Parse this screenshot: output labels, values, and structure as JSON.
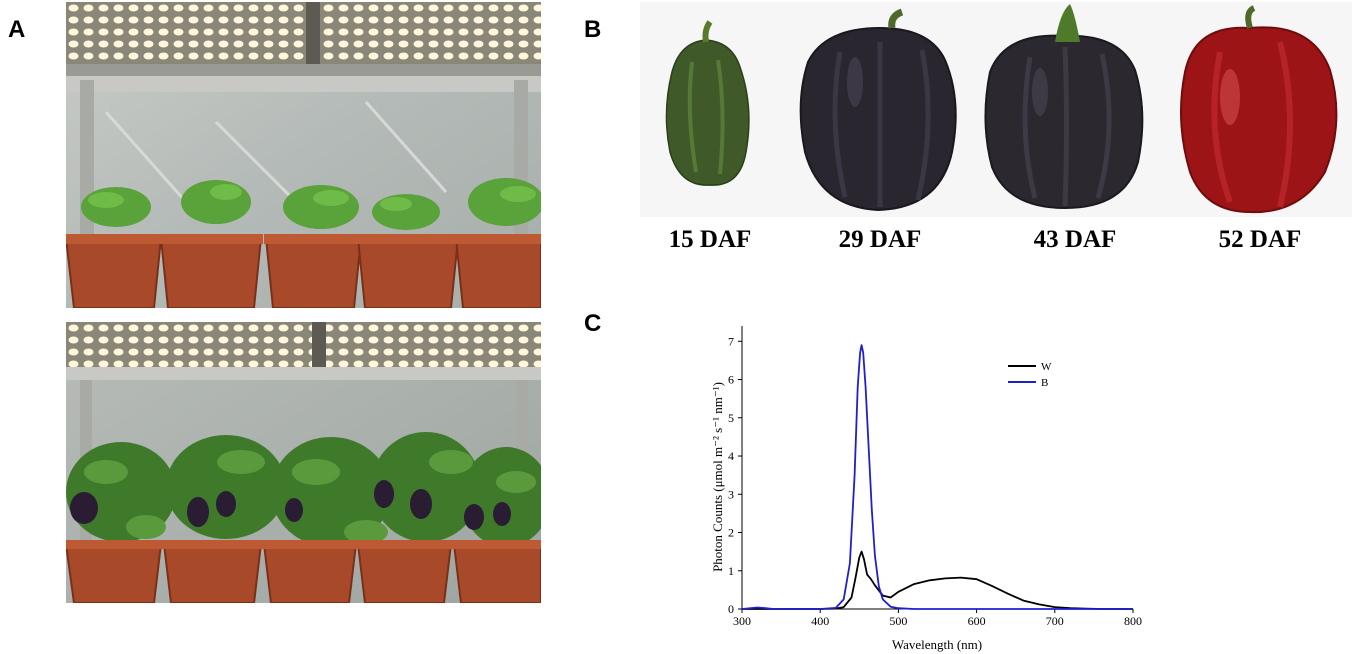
{
  "figure": {
    "panels": {
      "a": "A",
      "b": "B",
      "c": "C"
    },
    "fruit_stages": [
      "15 DAF",
      "29 DAF",
      "43 DAF",
      "52 DAF"
    ],
    "fruit_colors": [
      "#3f5a28",
      "#2a2630",
      "#2b2830",
      "#9c1416"
    ]
  },
  "chart_data": {
    "type": "line",
    "title": "",
    "xlabel": "Wavelength (nm)",
    "ylabel": "Photon Counts (μmol m⁻² s⁻¹ nm⁻¹)",
    "xlim": [
      300,
      800
    ],
    "ylim": [
      0,
      7.4
    ],
    "xticks": [
      300,
      400,
      500,
      600,
      700,
      800
    ],
    "yticks": [
      0,
      1,
      2,
      3,
      4,
      5,
      6,
      7
    ],
    "grid": false,
    "legend_position": "top-right",
    "series": [
      {
        "name": "W",
        "color": "#000000",
        "x": [
          300,
          400,
          420,
          430,
          440,
          445,
          450,
          453,
          456,
          460,
          465,
          470,
          480,
          490,
          500,
          520,
          540,
          560,
          580,
          600,
          620,
          640,
          660,
          680,
          700,
          720,
          740,
          760,
          800
        ],
        "y": [
          0,
          0,
          0.01,
          0.05,
          0.3,
          0.8,
          1.35,
          1.5,
          1.3,
          0.9,
          0.78,
          0.62,
          0.35,
          0.3,
          0.45,
          0.65,
          0.75,
          0.8,
          0.82,
          0.78,
          0.6,
          0.4,
          0.22,
          0.12,
          0.05,
          0.02,
          0.01,
          0,
          0
        ]
      },
      {
        "name": "B",
        "color": "#1f1fd1",
        "x": [
          300,
          320,
          330,
          340,
          400,
          420,
          430,
          438,
          444,
          448,
          451,
          453,
          455,
          458,
          462,
          466,
          470,
          475,
          480,
          490,
          500,
          520,
          800
        ],
        "y": [
          0,
          0.04,
          0.02,
          0,
          0,
          0.03,
          0.25,
          1.2,
          3.5,
          5.8,
          6.7,
          6.9,
          6.7,
          5.8,
          4.2,
          2.6,
          1.4,
          0.6,
          0.25,
          0.06,
          0.02,
          0,
          0
        ]
      }
    ]
  }
}
